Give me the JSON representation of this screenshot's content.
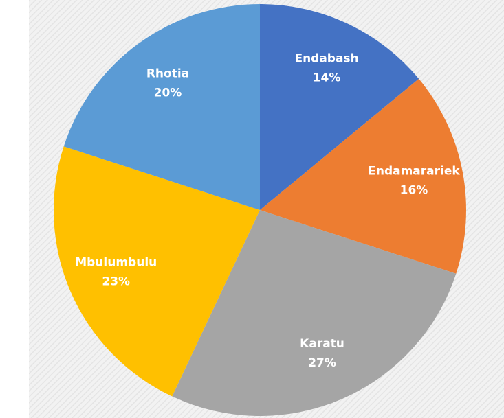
{
  "chart_data": {
    "type": "pie",
    "categories": [
      "Endabash",
      "Endamarariek",
      "Karatu",
      "Mbulumbulu",
      "Rhotia"
    ],
    "values": [
      14,
      16,
      27,
      23,
      20
    ],
    "value_labels": [
      "14%",
      "16%",
      "27%",
      "23%",
      "20%"
    ],
    "colors": [
      "#4472c4",
      "#ed7d31",
      "#a5a5a5",
      "#ffc000",
      "#5b9bd5"
    ]
  }
}
